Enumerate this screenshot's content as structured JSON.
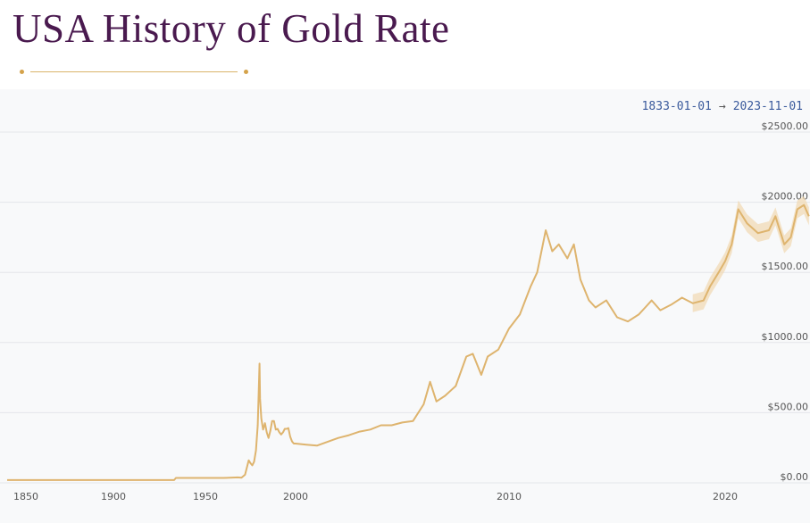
{
  "header": {
    "title": "USA History of Gold Rate"
  },
  "range": {
    "start": "1833-01-01",
    "arrow": "→",
    "end": "2023-11-01"
  },
  "colors": {
    "title": "#4a1a4f",
    "line": "#deb46e",
    "band": "#f1d9b0",
    "grid": "#e4e6ea",
    "background": "#f8f9fa"
  },
  "chart_data": {
    "type": "line",
    "title": "USA History of Gold Rate",
    "xlabel": "",
    "ylabel": "",
    "x_scale": "segmented time axis",
    "ylim": [
      0,
      2500
    ],
    "y_ticks": [
      "$0.00",
      "$500.00",
      "$1000.00",
      "$1500.00",
      "$2000.00",
      "$2500.00"
    ],
    "x_ticks": [
      "1850",
      "1900",
      "1950",
      "2000",
      "2010",
      "2020"
    ],
    "grid": true,
    "series": [
      {
        "x": [
          1833,
          1850,
          1900,
          1933,
          1934,
          1960,
          1968,
          1970,
          1972,
          1974,
          1975,
          1976,
          1977,
          1978,
          1979,
          1980.0,
          1980.3,
          1981,
          1982,
          1983,
          1984,
          1985,
          1986,
          1987,
          1988,
          1989,
          1990,
          1991,
          1992,
          1993,
          1994,
          1995,
          1996,
          1997,
          1998,
          1999,
          2000,
          2000.5,
          2001,
          2002,
          2002.5,
          2003,
          2003.5,
          2004,
          2004.5,
          2005,
          2005.5,
          2006,
          2006.3,
          2006.6,
          2007,
          2007.5,
          2008,
          2008.3,
          2008.7,
          2009,
          2009.5,
          2010,
          2010.5,
          2011,
          2011.3,
          2011.7,
          2012,
          2012.3,
          2012.7,
          2013,
          2013.3,
          2013.7,
          2014,
          2014.5,
          2015,
          2015.5,
          2016,
          2016.3,
          2016.6,
          2017,
          2017.5,
          2018,
          2018.5,
          2019,
          2019.3,
          2019.7,
          2020,
          2020.3,
          2020.6,
          2021,
          2021.5,
          2022,
          2022.3,
          2022.7,
          2023,
          2023.3,
          2023.6,
          2023.83
        ],
        "values": [
          20,
          20,
          20,
          20,
          35,
          35,
          39,
          36,
          58,
          160,
          140,
          125,
          150,
          230,
          410,
          850,
          600,
          460,
          380,
          425,
          360,
          320,
          370,
          440,
          440,
          380,
          385,
          360,
          345,
          360,
          385,
          385,
          390,
          330,
          295,
          280,
          280,
          272,
          265,
          320,
          340,
          365,
          380,
          410,
          410,
          430,
          440,
          560,
          720,
          580,
          620,
          690,
          900,
          920,
          770,
          900,
          950,
          1100,
          1200,
          1400,
          1500,
          1800,
          1650,
          1700,
          1600,
          1700,
          1450,
          1300,
          1250,
          1300,
          1180,
          1150,
          1200,
          1250,
          1300,
          1230,
          1270,
          1320,
          1280,
          1300,
          1400,
          1500,
          1580,
          1700,
          1950,
          1850,
          1780,
          1800,
          1900,
          1700,
          1750,
          1950,
          1980,
          1900
        ]
      }
    ]
  }
}
